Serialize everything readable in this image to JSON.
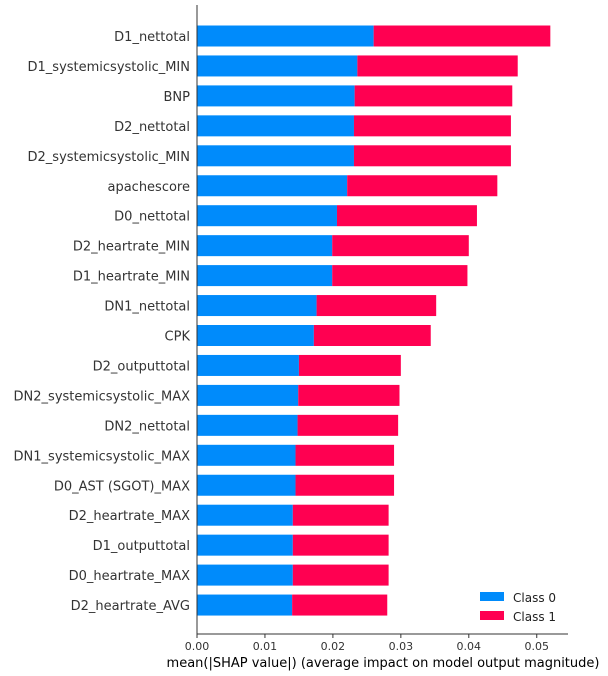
{
  "chart_data": {
    "type": "bar",
    "orientation": "horizontal",
    "stacked": true,
    "categories": [
      "D1_nettotal",
      "D1_systemicsystolic_MIN",
      "BNP",
      "D2_nettotal",
      "D2_systemicsystolic_MIN",
      "apachescore",
      "D0_nettotal",
      "D2_heartrate_MIN",
      "D1_heartrate_MIN",
      "DN1_nettotal",
      "CPK",
      "D2_outputtotal",
      "DN2_systemicsystolic_MAX",
      "DN2_nettotal",
      "DN1_systemicsystolic_MAX",
      "D0_AST (SGOT)_MAX",
      "D2_heartrate_MAX",
      "D1_outputtotal",
      "D0_heartrate_MAX",
      "D2_heartrate_AVG"
    ],
    "series": [
      {
        "name": "Class 0",
        "color": "#008bfb",
        "values": [
          0.026,
          0.0236,
          0.0232,
          0.0231,
          0.0231,
          0.0221,
          0.0206,
          0.0199,
          0.0199,
          0.0176,
          0.0172,
          0.015,
          0.0149,
          0.0148,
          0.0145,
          0.0145,
          0.0141,
          0.0141,
          0.0141,
          0.014
        ]
      },
      {
        "name": "Class 1",
        "color": "#ff0051",
        "values": [
          0.026,
          0.0236,
          0.0232,
          0.0231,
          0.0231,
          0.0221,
          0.0206,
          0.0201,
          0.0199,
          0.0176,
          0.0172,
          0.015,
          0.0149,
          0.0148,
          0.0145,
          0.0145,
          0.0141,
          0.0141,
          0.0141,
          0.014
        ]
      }
    ],
    "xlabel": "mean(|SHAP value|) (average impact on model output magnitude)",
    "xlim": [
      0,
      0.0546
    ],
    "xticks": [
      "0.00",
      "0.01",
      "0.02",
      "0.03",
      "0.04",
      "0.05"
    ],
    "legend": {
      "placement": "bottom-right",
      "entries": [
        "Class 0",
        "Class 1"
      ]
    },
    "grid": false
  }
}
